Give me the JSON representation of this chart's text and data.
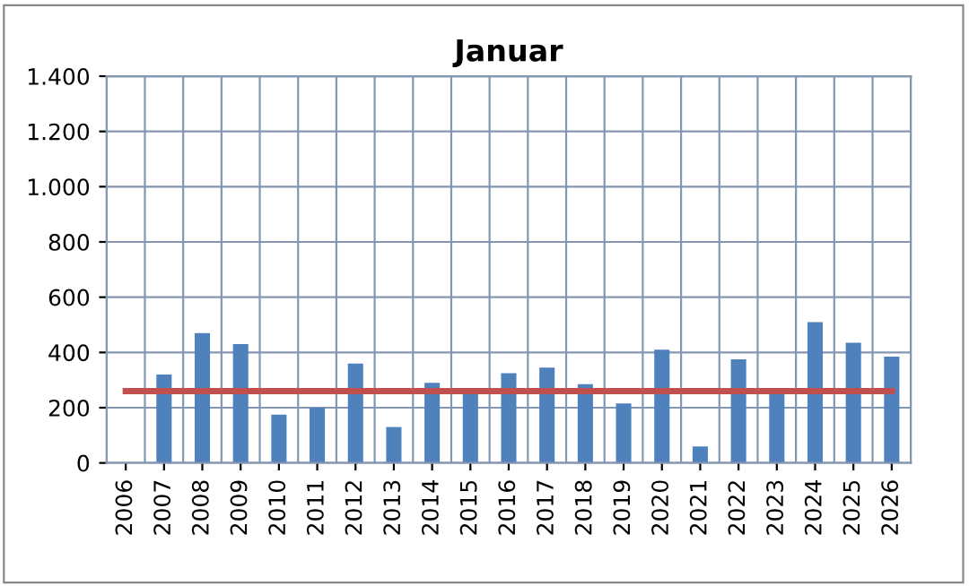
{
  "chart_data": {
    "type": "bar",
    "title": "Januar",
    "categories": [
      "2006",
      "2007",
      "2008",
      "2009",
      "2010",
      "2011",
      "2012",
      "2013",
      "2014",
      "2015",
      "2016",
      "2017",
      "2018",
      "2019",
      "2020",
      "2021",
      "2022",
      "2023",
      "2024",
      "2025",
      "2026"
    ],
    "series": [
      {
        "color": "#4f81bd",
        "values": [
          null,
          320,
          470,
          430,
          175,
          200,
          360,
          130,
          290,
          260,
          325,
          345,
          285,
          215,
          410,
          60,
          375,
          250,
          510,
          435,
          385
        ]
      },
      {
        "type": "line",
        "color": "#c0504d",
        "values": [
          260,
          260,
          260,
          260,
          260,
          260,
          260,
          260,
          260,
          260,
          260,
          260,
          260,
          260,
          260,
          260,
          260,
          260,
          260,
          260,
          260
        ]
      }
    ],
    "ylim": [
      0,
      1400
    ],
    "yticks": [
      0,
      200,
      400,
      600,
      800,
      {
        "value": 1000,
        "label": "1.000"
      },
      {
        "value": 1200,
        "label": "1.200"
      },
      {
        "value": 1400,
        "label": "1.400"
      }
    ],
    "grid": true
  }
}
